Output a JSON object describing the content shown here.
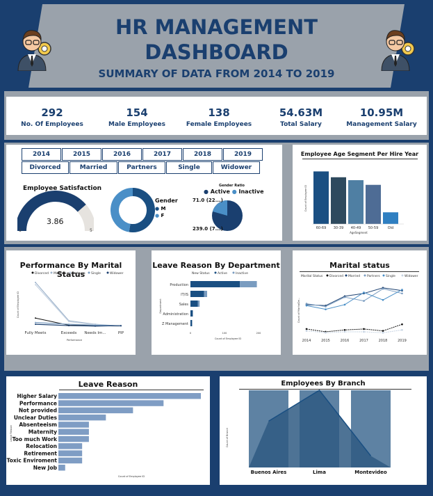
{
  "header": {
    "title_line1": "HR MANAGEMENT",
    "title_line2": "DASHBOARD",
    "subtitle": "SUMMARY OF DATA FROM 2014 TO 2019"
  },
  "kpis": [
    {
      "value": "292",
      "label": "No. Of Employees"
    },
    {
      "value": "154",
      "label": "Male Employees"
    },
    {
      "value": "138",
      "label": "Female Employees"
    },
    {
      "value": "54.63M",
      "label": "Total Salary"
    },
    {
      "value": "10.95M",
      "label": "Management Salary"
    }
  ],
  "filters": {
    "years": [
      "2014",
      "2015",
      "2016",
      "2017",
      "2018",
      "2019"
    ],
    "status": [
      "Divorced",
      "Married",
      "Partners",
      "Single",
      "Widower"
    ]
  },
  "satisfaction": {
    "title": "Employee Satisfaction",
    "value": "3.86",
    "fraction": 0.772,
    "min_label": "1",
    "max_label": "5"
  },
  "gender": {
    "title": "Gender",
    "items": [
      {
        "label": "M",
        "share": 0.527,
        "color": "#1a4f82"
      },
      {
        "label": "F",
        "share": 0.473,
        "color": "#4a8fc7"
      }
    ]
  },
  "gender_ratio": {
    "title": "Gender Ratio",
    "legend": [
      {
        "label": "Active",
        "color": "#1a3f6f"
      },
      {
        "label": "Inactive",
        "color": "#4a8fc7"
      }
    ],
    "label_top": "71.0 (22...)",
    "label_bottom": "239.0 (7...)"
  },
  "colors": {
    "navy": "#1a3f6f",
    "mid": "#4a8fc7",
    "grey": "#9aa2ab",
    "bar": "#7f9dc4"
  },
  "chart_data": [
    {
      "type": "bar",
      "title": "Employee Age Segment Per Hire Year",
      "categories": [
        "60-69",
        "30-39",
        "40-49",
        "50-59",
        "Old"
      ],
      "values": [
        90,
        80,
        75,
        67,
        20
      ],
      "colors": [
        "#1a4f82",
        "#2e4a5e",
        "#4f7fa3",
        "#4e6c95",
        "#2f7fc1"
      ],
      "xlabel": "AgeSegment",
      "ylabel": "Count of Employee ID",
      "ylim": [
        0,
        100
      ]
    },
    {
      "type": "line",
      "title": "Performance By Marital Status",
      "legend": [
        "Divorced",
        "Married",
        "Partners",
        "Single",
        "Widower"
      ],
      "categories": [
        "Fully Meets",
        "Exceeds",
        "Needs Im...",
        "PIP"
      ],
      "series": [
        {
          "name": "Divorced",
          "values": [
            20,
            4,
            3,
            2
          ]
        },
        {
          "name": "Married",
          "values": [
            100,
            14,
            6,
            2
          ]
        },
        {
          "name": "Partners",
          "values": [
            95,
            12,
            5,
            2
          ]
        },
        {
          "name": "Single",
          "values": [
            10,
            6,
            4,
            3
          ]
        },
        {
          "name": "Widower",
          "values": [
            6,
            3,
            2,
            3
          ]
        }
      ],
      "xlabel": "Performance",
      "ylabel": "Count of Employee ID"
    },
    {
      "type": "bar",
      "orientation": "horizontal",
      "title": "Leave Reason By Department",
      "legend": [
        "Active",
        "Inactive"
      ],
      "legend_title": "New Status",
      "categories": [
        "Production",
        "IT/IS",
        "Sales",
        "Administration",
        "Z Management"
      ],
      "series": [
        {
          "name": "Active",
          "values": [
            145,
            40,
            22,
            7,
            5
          ]
        },
        {
          "name": "Inactive",
          "values": [
            50,
            9,
            5,
            0,
            0
          ]
        }
      ],
      "xlabel": "Count of Employee ID",
      "ylabel": "Department",
      "xlim": [
        0,
        200
      ],
      "xticks": [
        "0",
        "100",
        "200"
      ]
    },
    {
      "type": "line",
      "title": "Marital status",
      "legend_title": "Marital Status",
      "legend": [
        "Divorced",
        "Married",
        "Partners",
        "Single",
        "Widower"
      ],
      "categories": [
        "2014",
        "2015",
        "2016",
        "2017",
        "2018",
        "2019"
      ],
      "series": [
        {
          "name": "Divorced",
          "values": [
            6,
            3,
            5,
            6,
            4,
            11
          ]
        },
        {
          "name": "Married",
          "values": [
            32,
            31,
            41,
            44,
            50,
            47
          ]
        },
        {
          "name": "Partners",
          "values": [
            33,
            30,
            40,
            36,
            49,
            44
          ]
        },
        {
          "name": "Single",
          "values": [
            31,
            27,
            32,
            45,
            37,
            48
          ]
        },
        {
          "name": "Widower",
          "values": [
            4,
            2,
            3,
            3,
            2,
            5
          ]
        }
      ],
      "ylabel": "Count of MaritalDe..."
    },
    {
      "type": "bar",
      "orientation": "horizontal",
      "title": "Leave Reason",
      "categories": [
        "Higher Salary",
        "Performance",
        "Not provided",
        "Unclear Duties",
        "Absenteeism",
        "Maternity",
        "Too much Work",
        "Relocation",
        "Retirement",
        "Toxic Enviroment",
        "New Job"
      ],
      "values": [
        42,
        31,
        22,
        14,
        9,
        9,
        9,
        7,
        7,
        7,
        2
      ],
      "xlabel": "Count of Employee ID",
      "ylabel": "Leave Reason"
    },
    {
      "type": "bar",
      "title": "Employees By Branch",
      "categories": [
        "Buenos Aires",
        "Lima",
        "Montevideo"
      ],
      "values": [
        100,
        100,
        100
      ],
      "line": [
        60,
        100,
        15
      ],
      "ylabel": "Count of Branch"
    }
  ]
}
